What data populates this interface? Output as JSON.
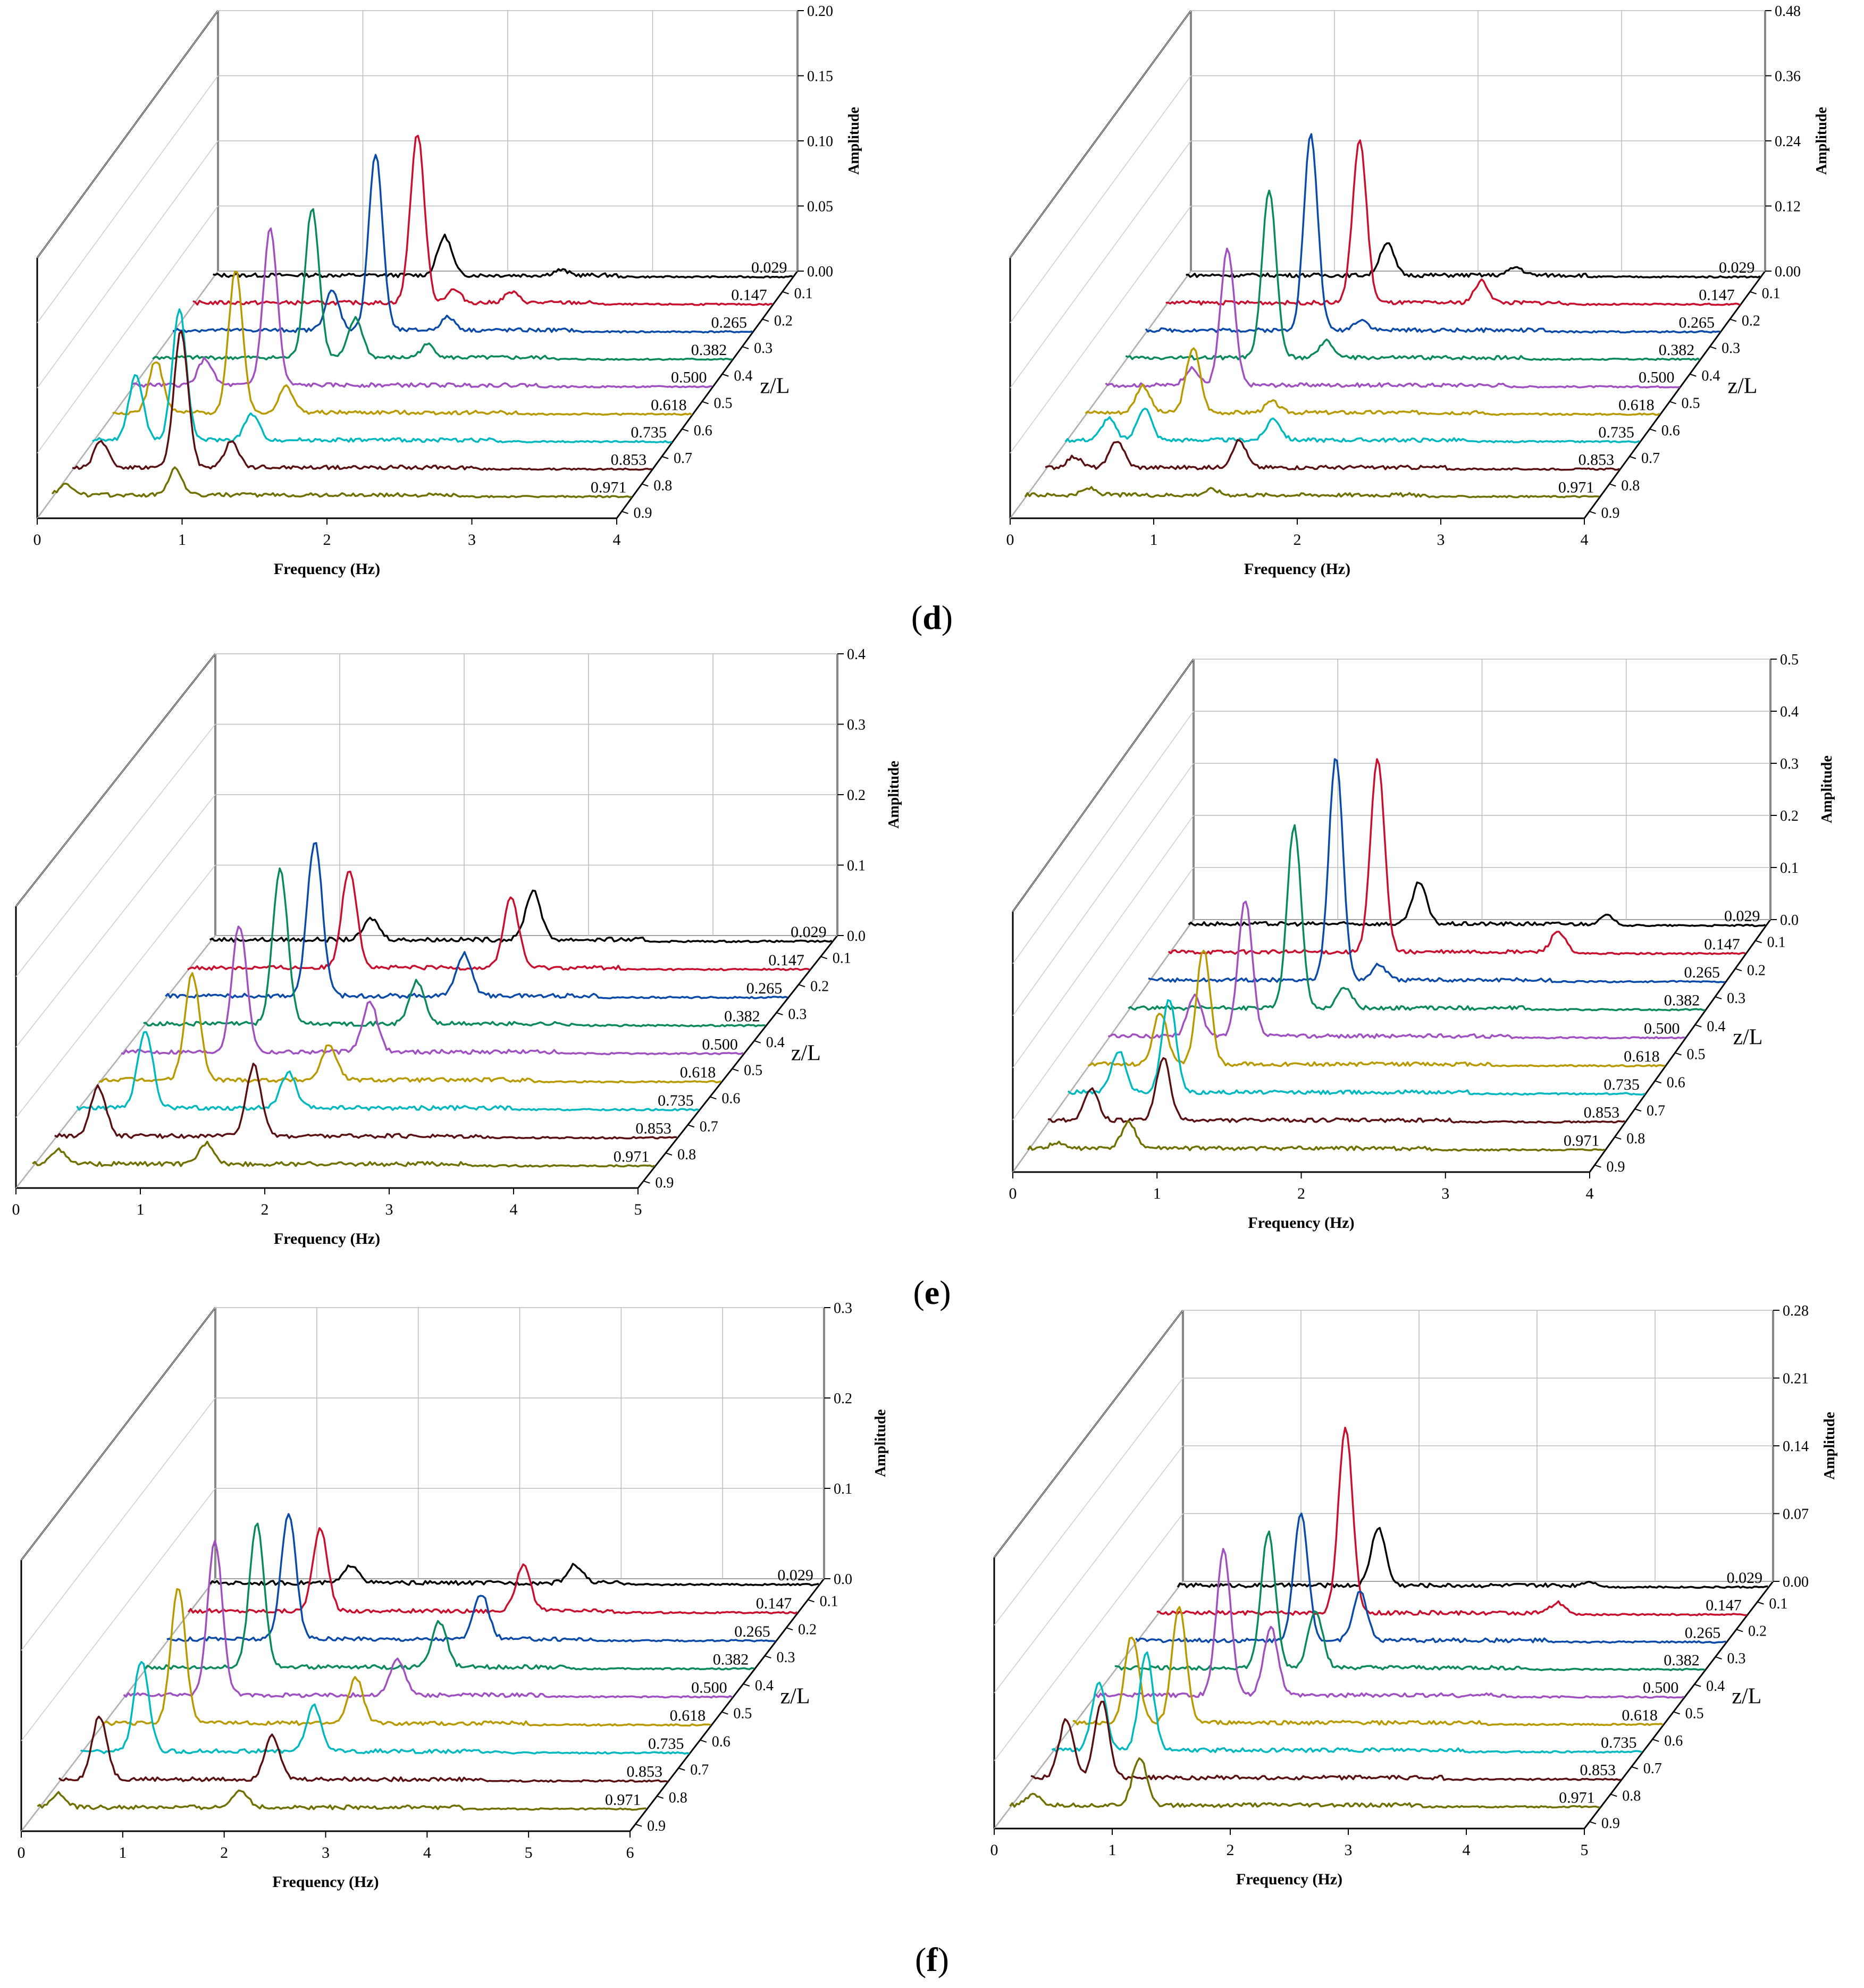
{
  "panel_labels": {
    "d": {
      "open": "(",
      "letter": "d",
      "close": ")"
    },
    "e": {
      "open": "(",
      "letter": "e",
      "close": ")"
    },
    "f": {
      "open": "(",
      "letter": "f",
      "close": ")"
    }
  },
  "colors": [
    "#000000",
    "#c8102e",
    "#0a4aa8",
    "#0a8a5a",
    "#a050c0",
    "#b89a00",
    "#00b8c0",
    "#5a1010",
    "#707000"
  ],
  "chart_data": [
    {
      "type": "line",
      "panel": "d-left",
      "xlabel": "Frequency (Hz)",
      "zlabel": "Amplitude",
      "ylabel": "z/L",
      "xlim": [
        0,
        4
      ],
      "zlim": [
        0,
        0.2
      ],
      "x_ticks": [
        "0",
        "1",
        "2",
        "3",
        "4"
      ],
      "z_ticks": [
        "0.00",
        "0.05",
        "0.10",
        "0.15",
        "0.20"
      ],
      "y_ticks": [
        "0.1",
        "0.2",
        "0.3",
        "0.4",
        "0.5",
        "0.6",
        "0.7",
        "0.8",
        "0.9"
      ],
      "series_names": [
        "0.029",
        "0.147",
        "0.265",
        "0.382",
        "0.500",
        "0.618",
        "0.735",
        "0.853",
        "0.971"
      ],
      "series": [
        {
          "name": "0.029",
          "peaks": [
            [
              1.6,
              0.03
            ],
            [
              2.4,
              0.004
            ]
          ]
        },
        {
          "name": "0.147",
          "peaks": [
            [
              1.55,
              0.13
            ],
            [
              1.8,
              0.01
            ],
            [
              2.2,
              0.008
            ]
          ]
        },
        {
          "name": "0.265",
          "peaks": [
            [
              1.4,
              0.135
            ],
            [
              1.1,
              0.03
            ],
            [
              1.9,
              0.01
            ]
          ]
        },
        {
          "name": "0.382",
          "peaks": [
            [
              1.1,
              0.115
            ],
            [
              1.4,
              0.03
            ],
            [
              1.9,
              0.01
            ]
          ]
        },
        {
          "name": "0.500",
          "peaks": [
            [
              0.95,
              0.12
            ],
            [
              0.5,
              0.02
            ]
          ]
        },
        {
          "name": "0.618",
          "peaks": [
            [
              0.85,
              0.11
            ],
            [
              0.3,
              0.04
            ],
            [
              1.2,
              0.02
            ]
          ]
        },
        {
          "name": "0.735",
          "peaks": [
            [
              0.6,
              0.1
            ],
            [
              0.3,
              0.05
            ],
            [
              1.1,
              0.02
            ]
          ]
        },
        {
          "name": "0.853",
          "peaks": [
            [
              0.75,
              0.105
            ],
            [
              0.2,
              0.02
            ],
            [
              1.1,
              0.02
            ]
          ]
        },
        {
          "name": "0.971",
          "peaks": [
            [
              0.85,
              0.02
            ],
            [
              0.1,
              0.008
            ]
          ]
        }
      ]
    },
    {
      "type": "line",
      "panel": "d-right",
      "xlabel": "Frequency (Hz)",
      "zlabel": "Amplitude",
      "ylabel": "z/L",
      "xlim": [
        0,
        4
      ],
      "zlim": [
        0,
        0.48
      ],
      "x_ticks": [
        "0",
        "1",
        "2",
        "3",
        "4"
      ],
      "z_ticks": [
        "0.00",
        "0.12",
        "0.24",
        "0.36",
        "0.48"
      ],
      "y_ticks": [
        "0.1",
        "0.2",
        "0.3",
        "0.4",
        "0.5",
        "0.6",
        "0.7",
        "0.8",
        "0.9"
      ],
      "series_names": [
        "0.029",
        "0.147",
        "0.265",
        "0.382",
        "0.500",
        "0.618",
        "0.735",
        "0.853",
        "0.971"
      ],
      "series": [
        {
          "name": "0.029",
          "peaks": [
            [
              1.4,
              0.06
            ],
            [
              2.3,
              0.015
            ]
          ]
        },
        {
          "name": "0.147",
          "peaks": [
            [
              1.35,
              0.3
            ],
            [
              2.2,
              0.04
            ]
          ]
        },
        {
          "name": "0.265",
          "peaks": [
            [
              1.15,
              0.36
            ],
            [
              1.5,
              0.02
            ]
          ]
        },
        {
          "name": "0.382",
          "peaks": [
            [
              1.0,
              0.31
            ],
            [
              1.4,
              0.03
            ]
          ]
        },
        {
          "name": "0.500",
          "peaks": [
            [
              0.85,
              0.25
            ],
            [
              0.6,
              0.03
            ]
          ]
        },
        {
          "name": "0.618",
          "peaks": [
            [
              0.75,
              0.12
            ],
            [
              0.4,
              0.05
            ],
            [
              1.3,
              0.02
            ]
          ]
        },
        {
          "name": "0.735",
          "peaks": [
            [
              0.55,
              0.06
            ],
            [
              1.45,
              0.04
            ],
            [
              0.3,
              0.04
            ]
          ]
        },
        {
          "name": "0.853",
          "peaks": [
            [
              0.5,
              0.05
            ],
            [
              1.35,
              0.05
            ],
            [
              0.2,
              0.02
            ]
          ]
        },
        {
          "name": "0.971",
          "peaks": [
            [
              0.45,
              0.012
            ],
            [
              1.3,
              0.01
            ]
          ]
        }
      ]
    },
    {
      "type": "line",
      "panel": "e-left",
      "xlabel": "Frequency (Hz)",
      "zlabel": "Amplitude",
      "ylabel": "z/L",
      "xlim": [
        0,
        5
      ],
      "zlim": [
        0,
        0.4
      ],
      "x_ticks": [
        "0",
        "1",
        "2",
        "3",
        "4",
        "5"
      ],
      "z_ticks": [
        "0.0",
        "0.1",
        "0.2",
        "0.3",
        "0.4"
      ],
      "y_ticks": [
        "0.1",
        "0.2",
        "0.3",
        "0.4",
        "0.5",
        "0.6",
        "0.7",
        "0.8",
        "0.9"
      ],
      "series_names": [
        "0.029",
        "0.147",
        "0.265",
        "0.382",
        "0.500",
        "0.618",
        "0.735",
        "0.853",
        "0.971"
      ],
      "series": [
        {
          "name": "0.029",
          "peaks": [
            [
              1.3,
              0.03
            ],
            [
              2.6,
              0.07
            ]
          ]
        },
        {
          "name": "0.147",
          "peaks": [
            [
              1.3,
              0.14
            ],
            [
              2.6,
              0.1
            ]
          ]
        },
        {
          "name": "0.265",
          "peaks": [
            [
              1.2,
              0.22
            ],
            [
              2.4,
              0.06
            ]
          ]
        },
        {
          "name": "0.382",
          "peaks": [
            [
              1.1,
              0.22
            ],
            [
              2.2,
              0.06
            ]
          ]
        },
        {
          "name": "0.500",
          "peaks": [
            [
              0.95,
              0.18
            ],
            [
              2.0,
              0.07
            ]
          ]
        },
        {
          "name": "0.618",
          "peaks": [
            [
              0.75,
              0.15
            ],
            [
              1.85,
              0.05
            ]
          ]
        },
        {
          "name": "0.735",
          "peaks": [
            [
              0.55,
              0.11
            ],
            [
              1.7,
              0.05
            ]
          ]
        },
        {
          "name": "0.853",
          "peaks": [
            [
              0.35,
              0.07
            ],
            [
              1.6,
              0.1
            ]
          ]
        },
        {
          "name": "0.971",
          "peaks": [
            [
              0.2,
              0.02
            ],
            [
              1.4,
              0.03
            ]
          ]
        }
      ]
    },
    {
      "type": "line",
      "panel": "e-right",
      "xlabel": "Frequency (Hz)",
      "zlabel": "Amplitude",
      "ylabel": "z/L",
      "xlim": [
        0,
        4
      ],
      "zlim": [
        0,
        0.5
      ],
      "x_ticks": [
        "0",
        "1",
        "2",
        "3",
        "4"
      ],
      "z_ticks": [
        "0.0",
        "0.1",
        "0.2",
        "0.3",
        "0.4",
        "0.5"
      ],
      "y_ticks": [
        "0.1",
        "0.2",
        "0.3",
        "0.4",
        "0.5",
        "0.6",
        "0.7",
        "0.8",
        "0.9"
      ],
      "series_names": [
        "0.029",
        "0.147",
        "0.265",
        "0.382",
        "0.500",
        "0.618",
        "0.735",
        "0.853",
        "0.971"
      ],
      "series": [
        {
          "name": "0.029",
          "peaks": [
            [
              1.6,
              0.08
            ],
            [
              2.9,
              0.02
            ]
          ]
        },
        {
          "name": "0.147",
          "peaks": [
            [
              1.45,
              0.37
            ],
            [
              2.7,
              0.04
            ]
          ]
        },
        {
          "name": "0.265",
          "peaks": [
            [
              1.3,
              0.43
            ],
            [
              1.6,
              0.03
            ]
          ]
        },
        {
          "name": "0.382",
          "peaks": [
            [
              1.15,
              0.35
            ],
            [
              1.5,
              0.04
            ]
          ]
        },
        {
          "name": "0.500",
          "peaks": [
            [
              0.95,
              0.26
            ],
            [
              0.6,
              0.08
            ]
          ]
        },
        {
          "name": "0.618",
          "peaks": [
            [
              0.8,
              0.22
            ],
            [
              0.5,
              0.1
            ]
          ]
        },
        {
          "name": "0.735",
          "peaks": [
            [
              0.7,
              0.18
            ],
            [
              0.35,
              0.08
            ]
          ]
        },
        {
          "name": "0.853",
          "peaks": [
            [
              0.8,
              0.12
            ],
            [
              0.3,
              0.06
            ]
          ]
        },
        {
          "name": "0.971",
          "peaks": [
            [
              0.7,
              0.05
            ],
            [
              0.2,
              0.01
            ]
          ]
        }
      ]
    },
    {
      "type": "line",
      "panel": "f-left",
      "xlabel": "Frequency (Hz)",
      "zlabel": "Amplitude",
      "ylabel": "z/L",
      "xlim": [
        0,
        6
      ],
      "zlim": [
        0,
        0.3
      ],
      "x_ticks": [
        "0",
        "1",
        "2",
        "3",
        "4",
        "5",
        "6"
      ],
      "z_ticks": [
        "0.0",
        "0.1",
        "0.2",
        "0.3"
      ],
      "y_ticks": [
        "0.1",
        "0.2",
        "0.3",
        "0.4",
        "0.5",
        "0.6",
        "0.7",
        "0.8",
        "0.9"
      ],
      "series_names": [
        "0.029",
        "0.147",
        "0.265",
        "0.382",
        "0.500",
        "0.618",
        "0.735",
        "0.853",
        "0.971"
      ],
      "series": [
        {
          "name": "0.029",
          "peaks": [
            [
              1.4,
              0.02
            ],
            [
              3.6,
              0.02
            ]
          ]
        },
        {
          "name": "0.147",
          "peaks": [
            [
              1.3,
              0.09
            ],
            [
              3.3,
              0.05
            ]
          ]
        },
        {
          "name": "0.265",
          "peaks": [
            [
              1.2,
              0.14
            ],
            [
              3.1,
              0.05
            ]
          ]
        },
        {
          "name": "0.382",
          "peaks": [
            [
              1.1,
              0.16
            ],
            [
              2.9,
              0.05
            ]
          ]
        },
        {
          "name": "0.500",
          "peaks": [
            [
              0.9,
              0.17
            ],
            [
              2.7,
              0.04
            ]
          ]
        },
        {
          "name": "0.618",
          "peaks": [
            [
              0.75,
              0.15
            ],
            [
              2.5,
              0.05
            ]
          ]
        },
        {
          "name": "0.735",
          "peaks": [
            [
              0.6,
              0.1
            ],
            [
              2.3,
              0.05
            ]
          ]
        },
        {
          "name": "0.853",
          "peaks": [
            [
              0.4,
              0.07
            ],
            [
              2.1,
              0.05
            ]
          ]
        },
        {
          "name": "0.971",
          "peaks": [
            [
              0.2,
              0.015
            ],
            [
              2.0,
              0.02
            ]
          ]
        }
      ]
    },
    {
      "type": "line",
      "panel": "f-right",
      "xlabel": "Frequency (Hz)",
      "zlabel": "Amplitude",
      "ylabel": "z/L",
      "xlim": [
        0,
        5
      ],
      "zlim": [
        0,
        0.28
      ],
      "x_ticks": [
        "0",
        "1",
        "2",
        "3",
        "4",
        "5"
      ],
      "z_ticks": [
        "0.00",
        "0.07",
        "0.14",
        "0.21",
        "0.28"
      ],
      "y_ticks": [
        "0.1",
        "0.2",
        "0.3",
        "0.4",
        "0.5",
        "0.6",
        "0.7",
        "0.8",
        "0.9"
      ],
      "series_names": [
        "0.029",
        "0.147",
        "0.265",
        "0.382",
        "0.500",
        "0.618",
        "0.735",
        "0.853",
        "0.971"
      ],
      "series": [
        {
          "name": "0.029",
          "peaks": [
            [
              1.7,
              0.06
            ],
            [
              3.5,
              0.005
            ]
          ]
        },
        {
          "name": "0.147",
          "peaks": [
            [
              1.6,
              0.19
            ],
            [
              3.4,
              0.01
            ]
          ]
        },
        {
          "name": "0.265",
          "peaks": [
            [
              1.4,
              0.13
            ],
            [
              1.9,
              0.05
            ]
          ]
        },
        {
          "name": "0.382",
          "peaks": [
            [
              1.3,
              0.14
            ],
            [
              1.7,
              0.06
            ]
          ]
        },
        {
          "name": "0.500",
          "peaks": [
            [
              1.1,
              0.15
            ],
            [
              1.5,
              0.07
            ]
          ]
        },
        {
          "name": "0.618",
          "peaks": [
            [
              0.9,
              0.12
            ],
            [
              0.5,
              0.09
            ]
          ]
        },
        {
          "name": "0.735",
          "peaks": [
            [
              0.8,
              0.1
            ],
            [
              0.4,
              0.07
            ]
          ]
        },
        {
          "name": "0.853",
          "peaks": [
            [
              0.6,
              0.08
            ],
            [
              0.3,
              0.06
            ]
          ]
        },
        {
          "name": "0.971",
          "peaks": [
            [
              1.1,
              0.05
            ],
            [
              0.2,
              0.01
            ]
          ]
        }
      ]
    }
  ]
}
